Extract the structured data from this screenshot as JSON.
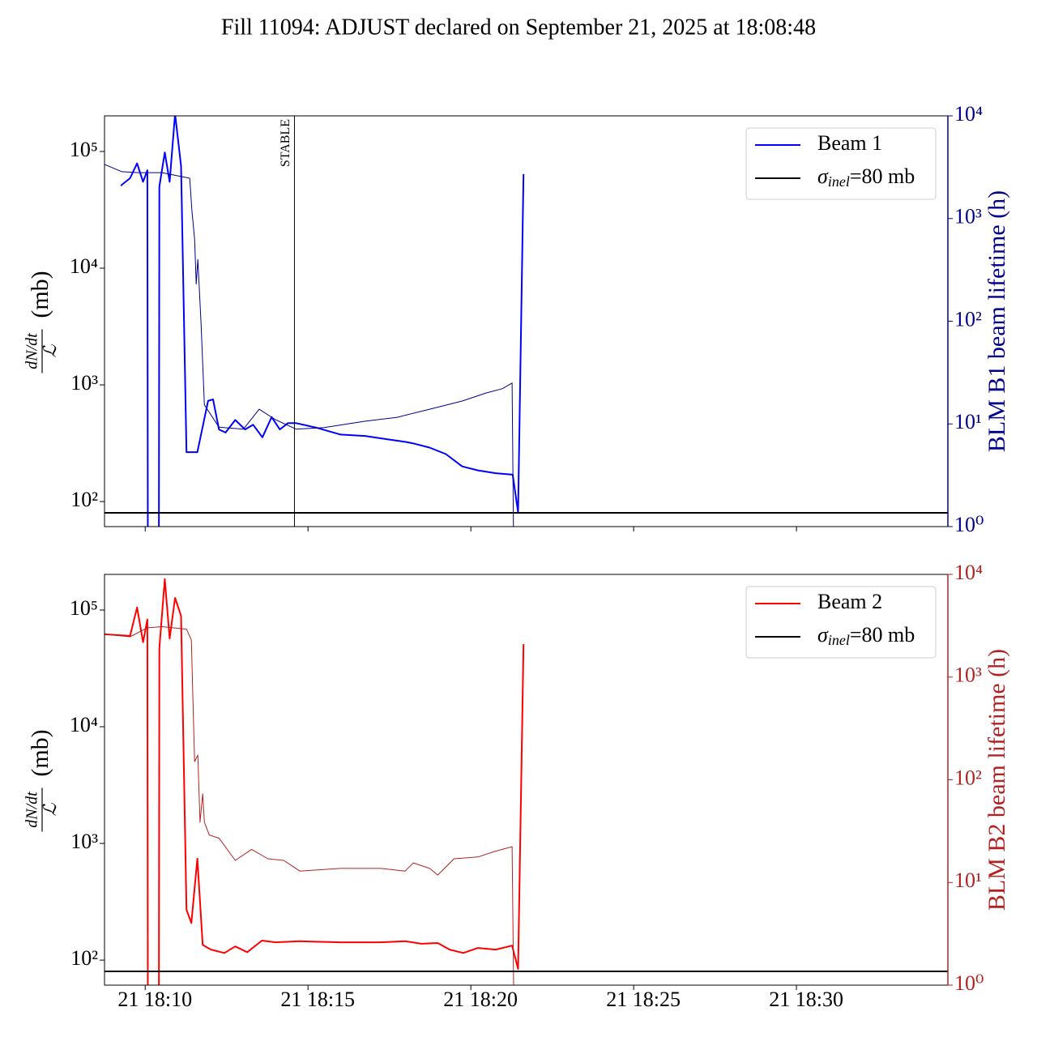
{
  "title": "Fill 11094: ADJUST declared on September 21, 2025 at 18:08:48",
  "chart_data": [
    {
      "type": "line",
      "log_scale": true,
      "legend": "upper right",
      "ylabel_numerator": "dN/dt",
      "ylabel_denominator": "ℒ",
      "ylabel_unit": "(mb)",
      "y2label": "BLM B1 beam lifetime (h)",
      "y2color": "#00008b",
      "xlim": [
        "18:08:45",
        "18:34:39"
      ],
      "xticks": [
        "18:10:00",
        "18:15:00",
        "18:20:00",
        "18:25:00",
        "18:30:00"
      ],
      "ylim": [
        61,
        202000
      ],
      "yticks": [
        {
          "value": 100,
          "label": "10²"
        },
        {
          "value": 1000,
          "label": "10³"
        },
        {
          "value": 10000,
          "label": "10⁴"
        },
        {
          "value": 100000,
          "label": "10⁵"
        }
      ],
      "y2lim": [
        1,
        10000
      ],
      "y2ticks": [
        {
          "value": 1,
          "label": "10⁰"
        },
        {
          "value": 10,
          "label": "10¹"
        },
        {
          "value": 100,
          "label": "10²"
        },
        {
          "value": 1000,
          "label": "10³"
        },
        {
          "value": 10000,
          "label": "10⁴"
        }
      ],
      "hline": {
        "value": 80,
        "color": "#000000",
        "label": [
          "σ",
          "inel",
          "=80 mb"
        ]
      },
      "annotation": {
        "x": "18:14:35",
        "text": "STABLE"
      },
      "series": [
        {
          "name": "Beam 1",
          "color": "#0000ff",
          "width": 2,
          "x": [
            "18:09:15",
            "18:09:32",
            "18:09:45",
            "18:09:56",
            "18:10:04",
            "18:10:05",
            "18:10:25",
            "18:10:26",
            "18:10:36",
            "18:10:45",
            "18:10:55",
            "18:11:06",
            "18:11:16",
            "18:11:36",
            "18:11:56",
            "18:12:05",
            "18:12:16",
            "18:12:28",
            "18:12:46",
            "18:13:04",
            "18:13:19",
            "18:13:36",
            "18:13:53",
            "18:14:08",
            "18:14:23",
            "18:14:38",
            "18:15:15",
            "18:16:00",
            "18:16:45",
            "18:17:29",
            "18:17:59",
            "18:18:14",
            "18:18:44",
            "18:19:14",
            "18:19:44",
            "18:20:13",
            "18:20:46",
            "18:21:17",
            "18:21:27",
            "18:21:37"
          ],
          "values": [
            51000,
            59000,
            79000,
            55000,
            69000,
            10,
            10,
            50000,
            98000,
            55000,
            210000,
            75000,
            265,
            265,
            730,
            750,
            415,
            390,
            500,
            415,
            455,
            355,
            530,
            415,
            470,
            470,
            430,
            375,
            365,
            340,
            325,
            315,
            290,
            255,
            200,
            185,
            175,
            170,
            81,
            64000
          ]
        },
        {
          "color": "#00008b",
          "width": 1,
          "axis": "y2",
          "x": [
            "18:08:45",
            "18:09:17",
            "18:09:47",
            "18:10:31",
            "18:11:22",
            "18:11:26",
            "18:11:31",
            "18:11:34",
            "18:11:37",
            "18:11:43",
            "18:11:49",
            "18:12:16",
            "18:13:01",
            "18:13:30",
            "18:14:00",
            "18:14:38",
            "18:15:30",
            "18:16:44",
            "18:17:44",
            "18:18:44",
            "18:19:44",
            "18:20:28",
            "18:20:58",
            "18:21:16",
            "18:21:19"
          ],
          "values": [
            3360,
            2860,
            2800,
            2800,
            2470,
            1190,
            630,
            230,
            400,
            94,
            15.3,
            9.3,
            8.9,
            13.9,
            11,
            8.9,
            9.2,
            10.6,
            11.6,
            13.9,
            16.7,
            20,
            22,
            25,
            0.5
          ]
        }
      ]
    },
    {
      "type": "line",
      "log_scale": true,
      "legend": "upper right",
      "ylabel_numerator": "dN/dt",
      "ylabel_denominator": "ℒ",
      "ylabel_unit": "(mb)",
      "y2label": "BLM B2 beam lifetime (h)",
      "y2color": "#b22222",
      "xlim": [
        "18:08:45",
        "18:34:39"
      ],
      "xticks": [
        {
          "value": "18:10:00",
          "label": "21 18:10"
        },
        {
          "value": "18:15:00",
          "label": "21 18:15"
        },
        {
          "value": "18:20:00",
          "label": "21 18:20"
        },
        {
          "value": "18:25:00",
          "label": "21 18:25"
        },
        {
          "value": "18:30:00",
          "label": "21 18:30"
        }
      ],
      "ylim": [
        61,
        202000
      ],
      "yticks": [
        {
          "value": 100,
          "label": "10²"
        },
        {
          "value": 1000,
          "label": "10³"
        },
        {
          "value": 10000,
          "label": "10⁴"
        },
        {
          "value": 100000,
          "label": "10⁵"
        }
      ],
      "y2lim": [
        1,
        10000
      ],
      "y2ticks": [
        {
          "value": 1,
          "label": "10⁰"
        },
        {
          "value": 10,
          "label": "10¹"
        },
        {
          "value": 100,
          "label": "10²"
        },
        {
          "value": 1000,
          "label": "10³"
        },
        {
          "value": 10000,
          "label": "10⁴"
        }
      ],
      "hline": {
        "value": 80,
        "color": "#000000",
        "label": [
          "σ",
          "inel",
          "=80 mb"
        ]
      },
      "series": [
        {
          "name": "Beam 2",
          "color": "#ff0000",
          "width": 2,
          "x": [
            "18:08:45",
            "18:09:32",
            "18:09:45",
            "18:09:56",
            "18:10:04",
            "18:10:05",
            "18:10:25",
            "18:10:26",
            "18:10:36",
            "18:10:45",
            "18:10:55",
            "18:11:06",
            "18:11:16",
            "18:11:25",
            "18:11:36",
            "18:11:46",
            "18:12:01",
            "18:12:26",
            "18:12:46",
            "18:13:08",
            "18:13:35",
            "18:14:00",
            "18:14:45",
            "18:16:00",
            "18:17:14",
            "18:17:59",
            "18:18:29",
            "18:18:59",
            "18:19:21",
            "18:19:46",
            "18:20:13",
            "18:20:46",
            "18:21:16",
            "18:21:27",
            "18:21:37"
          ],
          "values": [
            62000,
            60000,
            105000,
            53000,
            83000,
            10,
            10,
            47000,
            184000,
            57000,
            127000,
            89000,
            270,
            208,
            740,
            135,
            123,
            115,
            131,
            117,
            147,
            142,
            145,
            142,
            142,
            145,
            138,
            140,
            123,
            115,
            127,
            123,
            133,
            84,
            51000
          ]
        },
        {
          "color": "#b22222",
          "width": 1,
          "axis": "y2",
          "x": [
            "18:08:45",
            "18:09:32",
            "18:10:04",
            "18:10:31",
            "18:11:16",
            "18:11:25",
            "18:11:31",
            "18:11:37",
            "18:11:41",
            "18:11:46",
            "18:11:49",
            "18:11:58",
            "18:12:16",
            "18:12:46",
            "18:13:16",
            "18:13:46",
            "18:14:15",
            "18:14:45",
            "18:16:00",
            "18:17:14",
            "18:17:59",
            "18:18:14",
            "18:18:44",
            "18:18:59",
            "18:19:29",
            "18:20:13",
            "18:20:43",
            "18:21:16",
            "18:21:19"
          ],
          "values": [
            2610,
            2470,
            3020,
            3100,
            2930,
            2300,
            150,
            174,
            38.5,
            73,
            38.5,
            29,
            27,
            16.4,
            21,
            17,
            16.4,
            12.9,
            13.7,
            13.7,
            12.9,
            15.5,
            13.7,
            11.8,
            17,
            17.7,
            20,
            22.3,
            0.8
          ]
        }
      ]
    }
  ]
}
